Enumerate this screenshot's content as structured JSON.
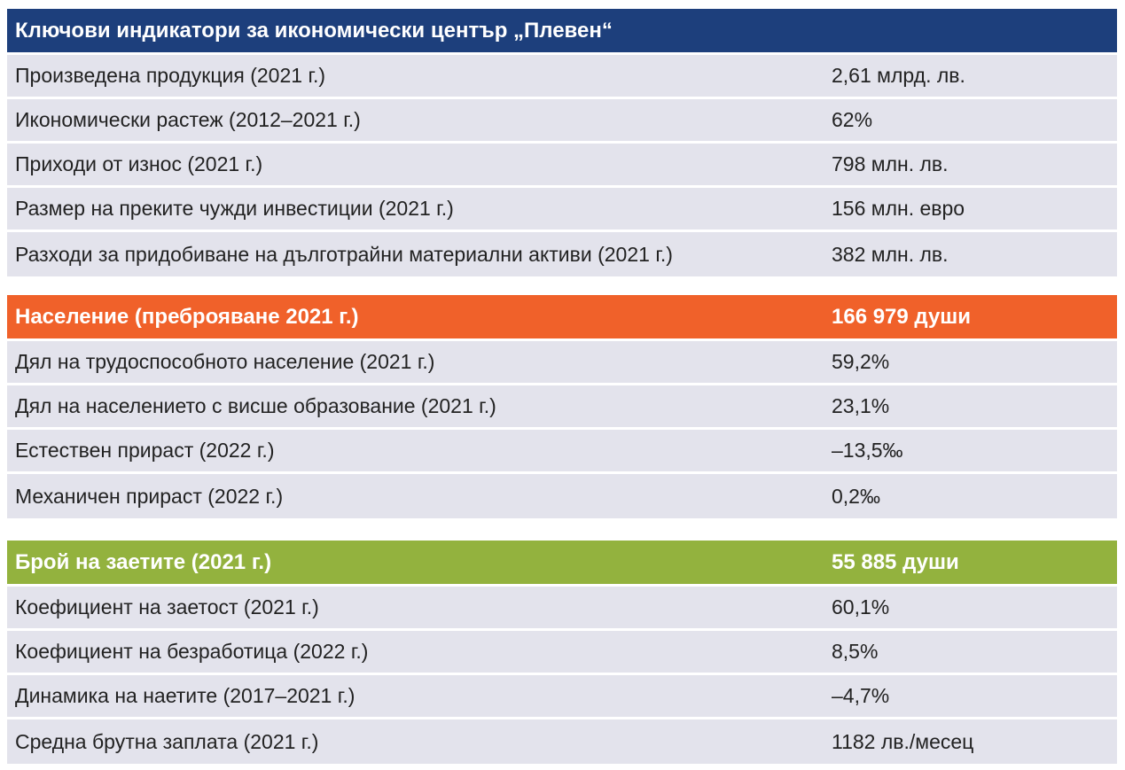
{
  "colors": {
    "header_blue": "#1d3f7c",
    "header_orange": "#f0612a",
    "header_green": "#93b23e",
    "row_bg": "#e3e3ec"
  },
  "section1": {
    "title": "Ключови индикатори за икономически център „Плевен“",
    "rows": [
      {
        "label": "Произведена продукция (2021 г.)",
        "value": "2,61 млрд. лв."
      },
      {
        "label": "Икономически растеж (2012–2021 г.)",
        "value": "62%"
      },
      {
        "label": "Приходи от износ (2021 г.)",
        "value": "798 млн. лв."
      },
      {
        "label": "Размер на преките чужди инвестиции (2021 г.)",
        "value": "156 млн. евро"
      },
      {
        "label": "Разходи за придобиване на дълготрайни материални активи (2021 г.)",
        "value": "382 млн. лв."
      }
    ]
  },
  "section2": {
    "title": "Население (преброяване 2021 г.)",
    "title_value": "166 979 души",
    "rows": [
      {
        "label": "Дял на трудоспособното население (2021 г.)",
        "value": "59,2%"
      },
      {
        "label": "Дял на населението с висше образование (2021 г.)",
        "value": "23,1%"
      },
      {
        "label": "Естествен прираст (2022 г.)",
        "value": "–13,5‰"
      },
      {
        "label": "Механичен прираст (2022 г.)",
        "value": "0,2‰"
      }
    ]
  },
  "section3": {
    "title": "Брой на заетите (2021 г.)",
    "title_value": "55 885 души",
    "rows": [
      {
        "label": "Коефициент на заетост (2021 г.)",
        "value": "60,1%"
      },
      {
        "label": "Коефициент на безработица (2022 г.)",
        "value": "8,5%"
      },
      {
        "label": "Динамика на наетите (2017–2021 г.)",
        "value": "–4,7%"
      },
      {
        "label": "Средна брутна заплата (2021 г.)",
        "value": "1182 лв./месец"
      }
    ]
  }
}
